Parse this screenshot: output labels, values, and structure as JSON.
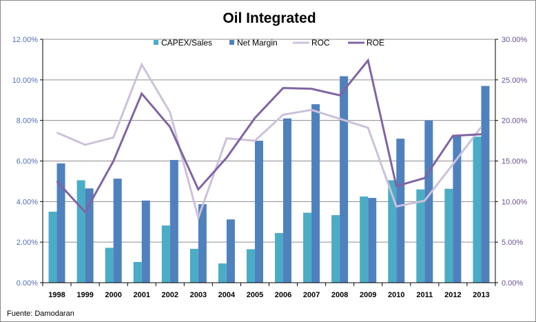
{
  "chart_data": {
    "type": "bar",
    "title": "Oil Integrated",
    "source": "Fuente: Damodaran",
    "categories": [
      "1998",
      "1999",
      "2000",
      "2001",
      "2002",
      "2003",
      "2004",
      "2005",
      "2006",
      "2007",
      "2008",
      "2009",
      "2010",
      "2011",
      "2012",
      "2013"
    ],
    "series": [
      {
        "name": "CAPEX/Sales",
        "type": "bar",
        "axis": "left",
        "color": "#4bacc6",
        "values": [
          3.5,
          5.05,
          1.72,
          1.02,
          2.82,
          1.67,
          0.95,
          1.65,
          2.45,
          3.45,
          3.33,
          4.25,
          5.05,
          4.6,
          4.63,
          7.2
        ]
      },
      {
        "name": "Net Margin",
        "type": "bar",
        "axis": "left",
        "color": "#4f81bd",
        "values": [
          5.88,
          4.65,
          5.13,
          4.05,
          6.05,
          3.87,
          3.12,
          7.0,
          8.1,
          8.8,
          10.18,
          4.18,
          7.1,
          8.0,
          7.25,
          9.7
        ]
      },
      {
        "name": "ROC",
        "type": "line",
        "axis": "right",
        "color": "#ccc1da",
        "values": [
          18.5,
          17.0,
          17.9,
          26.9,
          21.0,
          8.0,
          17.8,
          17.5,
          20.7,
          21.3,
          20.2,
          19.1,
          9.4,
          10.1,
          14.6,
          19.2
        ]
      },
      {
        "name": "ROE",
        "type": "line",
        "axis": "right",
        "color": "#8064a2",
        "values": [
          12.5,
          8.7,
          15.0,
          23.3,
          19.2,
          11.5,
          15.4,
          20.3,
          24.0,
          23.9,
          23.1,
          27.4,
          11.9,
          12.9,
          18.1,
          18.3
        ]
      }
    ],
    "y_left": {
      "min": 0,
      "max": 12,
      "step": 2,
      "tick_labels": [
        "0.00%",
        "2.00%",
        "4.00%",
        "6.00%",
        "8.00%",
        "10.00%",
        "12.00%"
      ]
    },
    "y_right": {
      "min": 0,
      "max": 30,
      "step": 5,
      "tick_labels": [
        "0.00%",
        "5.00%",
        "10.00%",
        "15.00%",
        "20.00%",
        "25.00%",
        "30.00%"
      ]
    },
    "grid": true,
    "legend_position": "top"
  }
}
